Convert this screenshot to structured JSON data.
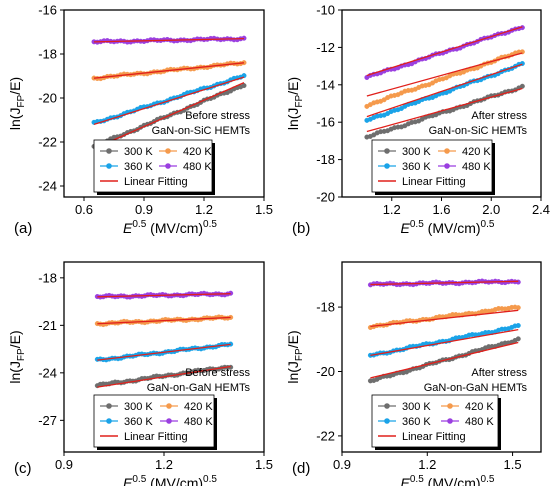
{
  "figure": {
    "ylabel_main": "ln(J",
    "ylabel_sub": "FP",
    "ylabel_tail": "/E)",
    "xlabel_main": "E",
    "xlabel_sup": "0.5",
    "xlabel_units": " (MV/cm)",
    "xlabel_sup2": "0.5"
  },
  "legend": {
    "entries": [
      "300 K",
      "360 K",
      "420 K",
      "480 K"
    ],
    "fit_label": "Linear Fitting"
  },
  "colors": {
    "300 K": "#6e6e6e",
    "360 K": "#1aa3e8",
    "420 K": "#f59a4c",
    "480 K": "#9a3fe0",
    "fit": "#e0201b"
  },
  "chart_data": [
    {
      "type": "scatter",
      "panel_label": "(a)",
      "annotation": [
        "Before stress",
        "GaN-on-SiC HEMTs"
      ],
      "xlim": [
        0.5,
        1.5
      ],
      "ylim": [
        -24.5,
        -16
      ],
      "xticks": [
        0.6,
        0.9,
        1.2,
        1.5
      ],
      "xtick_labels": [
        "0.6",
        "0.9",
        "1.2",
        "1.5"
      ],
      "yticks": [
        -24,
        -22,
        -20,
        -18,
        -16
      ],
      "ytick_labels": [
        "-24",
        "-22",
        "-20",
        "-18",
        "-16"
      ],
      "x_range": [
        0.65,
        1.4
      ],
      "series": [
        {
          "name": "300 K",
          "start": -22.2,
          "end": -19.4,
          "fit": [
            -22.3,
            -19.3
          ]
        },
        {
          "name": "360 K",
          "start": -21.15,
          "end": -19.0,
          "fit": [
            -21.2,
            -19.05
          ]
        },
        {
          "name": "420 K",
          "start": -19.1,
          "end": -18.4,
          "fit": [
            -19.1,
            -18.4
          ]
        },
        {
          "name": "480 K",
          "start": -17.45,
          "end": -17.3,
          "fit": [
            -17.45,
            -17.3
          ]
        }
      ]
    },
    {
      "type": "scatter",
      "panel_label": "(b)",
      "annotation": [
        "After stress",
        "GaN-on-SiC HEMTs"
      ],
      "xlim": [
        0.8,
        2.4
      ],
      "ylim": [
        -20,
        -10
      ],
      "xticks": [
        1.2,
        1.6,
        2.0,
        2.4
      ],
      "xtick_labels": [
        "1.2",
        "1.6",
        "2.0",
        "2.4"
      ],
      "yticks": [
        -20,
        -18,
        -16,
        -14,
        -12,
        -10
      ],
      "ytick_labels": [
        "-20",
        "-18",
        "-16",
        "-14",
        "-12",
        "-10"
      ],
      "x_range": [
        1.0,
        2.25
      ],
      "series": [
        {
          "name": "300 K",
          "start": -16.8,
          "end": -14.1,
          "fit": [
            -16.5,
            -14.2
          ]
        },
        {
          "name": "360 K",
          "start": -15.9,
          "end": -12.9,
          "fit": [
            -15.7,
            -12.9
          ]
        },
        {
          "name": "420 K",
          "start": -15.1,
          "end": -12.2,
          "fit": [
            -14.6,
            -12.3
          ]
        },
        {
          "name": "480 K",
          "start": -13.6,
          "end": -10.9,
          "fit": [
            -13.5,
            -10.9
          ]
        }
      ]
    },
    {
      "type": "scatter",
      "panel_label": "(c)",
      "annotation": [
        "Before stress",
        "GaN-on-GaN HEMTs"
      ],
      "xlim": [
        0.9,
        1.5
      ],
      "ylim": [
        -29,
        -17
      ],
      "xticks": [
        0.9,
        1.2,
        1.5
      ],
      "xtick_labels": [
        "0.9",
        "1.2",
        "1.5"
      ],
      "yticks": [
        -27,
        -24,
        -21,
        -18
      ],
      "ytick_labels": [
        "-27",
        "-24",
        "-21",
        "-18"
      ],
      "x_range": [
        1.0,
        1.4
      ],
      "series": [
        {
          "name": "300 K",
          "start": -24.8,
          "end": -23.6,
          "fit": [
            -24.9,
            -23.6
          ]
        },
        {
          "name": "360 K",
          "start": -23.2,
          "end": -22.2,
          "fit": [
            -23.2,
            -22.2
          ]
        },
        {
          "name": "420 K",
          "start": -20.9,
          "end": -20.5,
          "fit": [
            -20.9,
            -20.5
          ]
        },
        {
          "name": "480 K",
          "start": -19.2,
          "end": -19.0,
          "fit": [
            -19.2,
            -19.0
          ]
        }
      ]
    },
    {
      "type": "scatter",
      "panel_label": "(d)",
      "annotation": [
        "After stress",
        "GaN-on-GaN HEMTs"
      ],
      "xlim": [
        0.9,
        1.6
      ],
      "ylim": [
        -22.5,
        -16.6
      ],
      "xticks": [
        0.9,
        1.2,
        1.5
      ],
      "xtick_labels": [
        "0.9",
        "1.2",
        "1.5"
      ],
      "yticks": [
        -22,
        -20,
        -18
      ],
      "ytick_labels": [
        "-22",
        "-20",
        "-18"
      ],
      "x_range": [
        1.0,
        1.52
      ],
      "series": [
        {
          "name": "300 K",
          "start": -20.3,
          "end": -19.0,
          "fit": [
            -20.2,
            -19.1
          ]
        },
        {
          "name": "360 K",
          "start": -19.5,
          "end": -18.6,
          "fit": [
            -19.5,
            -18.7
          ]
        },
        {
          "name": "420 K",
          "start": -18.6,
          "end": -18.0,
          "fit": [
            -18.6,
            -18.1
          ]
        },
        {
          "name": "480 K",
          "start": -17.3,
          "end": -17.2,
          "fit": [
            -17.3,
            -17.2
          ]
        }
      ]
    }
  ]
}
